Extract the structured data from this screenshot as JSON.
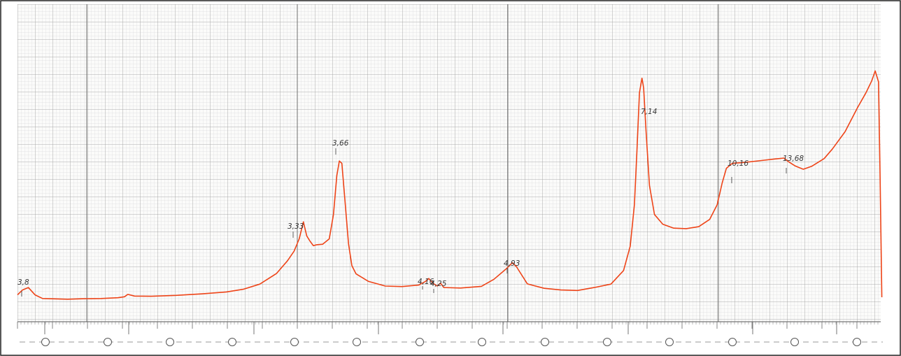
{
  "colors": {
    "paper": "#fbfbfa",
    "grid_major": "#9c9c9c",
    "grid_minor": "#d0d0d0",
    "trace": "#ee4418",
    "annotation": "#3a3a3a",
    "frame": "#222222"
  },
  "chart_data": {
    "type": "line",
    "title": "",
    "xlabel": "",
    "ylabel": "",
    "grid": true,
    "annotations": [
      "3,8",
      "3,33",
      "3,66",
      "4,16",
      "4,25",
      "4,93",
      "7,14",
      "10,16",
      "13,68"
    ],
    "series": [
      {
        "values": [
          [
            0.0,
            0.03
          ],
          [
            0.006,
            0.05
          ],
          [
            0.013,
            0.06
          ],
          [
            0.021,
            0.03
          ],
          [
            0.03,
            0.015
          ],
          [
            0.06,
            0.012
          ],
          [
            0.08,
            0.014
          ],
          [
            0.1,
            0.015
          ],
          [
            0.12,
            0.018
          ],
          [
            0.128,
            0.022
          ],
          [
            0.132,
            0.032
          ],
          [
            0.14,
            0.025
          ],
          [
            0.16,
            0.024
          ],
          [
            0.19,
            0.028
          ],
          [
            0.22,
            0.034
          ],
          [
            0.25,
            0.042
          ],
          [
            0.27,
            0.053
          ],
          [
            0.29,
            0.074
          ],
          [
            0.31,
            0.118
          ],
          [
            0.323,
            0.17
          ],
          [
            0.331,
            0.21
          ],
          [
            0.337,
            0.26
          ],
          [
            0.342,
            0.33
          ],
          [
            0.346,
            0.272
          ],
          [
            0.35,
            0.25
          ],
          [
            0.354,
            0.232
          ],
          [
            0.358,
            0.236
          ],
          [
            0.365,
            0.238
          ],
          [
            0.373,
            0.26
          ],
          [
            0.378,
            0.36
          ],
          [
            0.382,
            0.52
          ],
          [
            0.385,
            0.58
          ],
          [
            0.388,
            0.57
          ],
          [
            0.391,
            0.45
          ],
          [
            0.396,
            0.24
          ],
          [
            0.4,
            0.15
          ],
          [
            0.405,
            0.116
          ],
          [
            0.42,
            0.085
          ],
          [
            0.44,
            0.066
          ],
          [
            0.46,
            0.064
          ],
          [
            0.48,
            0.07
          ],
          [
            0.488,
            0.085
          ],
          [
            0.492,
            0.097
          ],
          [
            0.497,
            0.078
          ],
          [
            0.502,
            0.066
          ],
          [
            0.506,
            0.078
          ],
          [
            0.51,
            0.06
          ],
          [
            0.53,
            0.058
          ],
          [
            0.555,
            0.065
          ],
          [
            0.57,
            0.094
          ],
          [
            0.585,
            0.138
          ],
          [
            0.592,
            0.162
          ],
          [
            0.597,
            0.145
          ],
          [
            0.61,
            0.075
          ],
          [
            0.63,
            0.057
          ],
          [
            0.65,
            0.05
          ],
          [
            0.67,
            0.048
          ],
          [
            0.69,
            0.06
          ],
          [
            0.71,
            0.074
          ],
          [
            0.725,
            0.13
          ],
          [
            0.733,
            0.23
          ],
          [
            0.738,
            0.4
          ],
          [
            0.741,
            0.62
          ],
          [
            0.744,
            0.86
          ],
          [
            0.747,
            0.92
          ],
          [
            0.749,
            0.88
          ],
          [
            0.752,
            0.7
          ],
          [
            0.756,
            0.48
          ],
          [
            0.762,
            0.36
          ],
          [
            0.772,
            0.32
          ],
          [
            0.785,
            0.304
          ],
          [
            0.8,
            0.302
          ],
          [
            0.815,
            0.31
          ],
          [
            0.828,
            0.34
          ],
          [
            0.837,
            0.4
          ],
          [
            0.843,
            0.49
          ],
          [
            0.848,
            0.55
          ],
          [
            0.855,
            0.57
          ],
          [
            0.87,
            0.574
          ],
          [
            0.89,
            0.582
          ],
          [
            0.905,
            0.588
          ],
          [
            0.917,
            0.592
          ],
          [
            0.922,
            0.578
          ],
          [
            0.93,
            0.56
          ],
          [
            0.94,
            0.546
          ],
          [
            0.95,
            0.558
          ],
          [
            0.965,
            0.59
          ],
          [
            0.975,
            0.63
          ],
          [
            0.99,
            0.7
          ],
          [
            1.005,
            0.8
          ],
          [
            1.015,
            0.86
          ],
          [
            1.022,
            0.91
          ],
          [
            1.026,
            0.95
          ],
          [
            1.03,
            0.905
          ],
          [
            1.032,
            0.5
          ],
          [
            1.034,
            0.02
          ]
        ]
      }
    ]
  }
}
